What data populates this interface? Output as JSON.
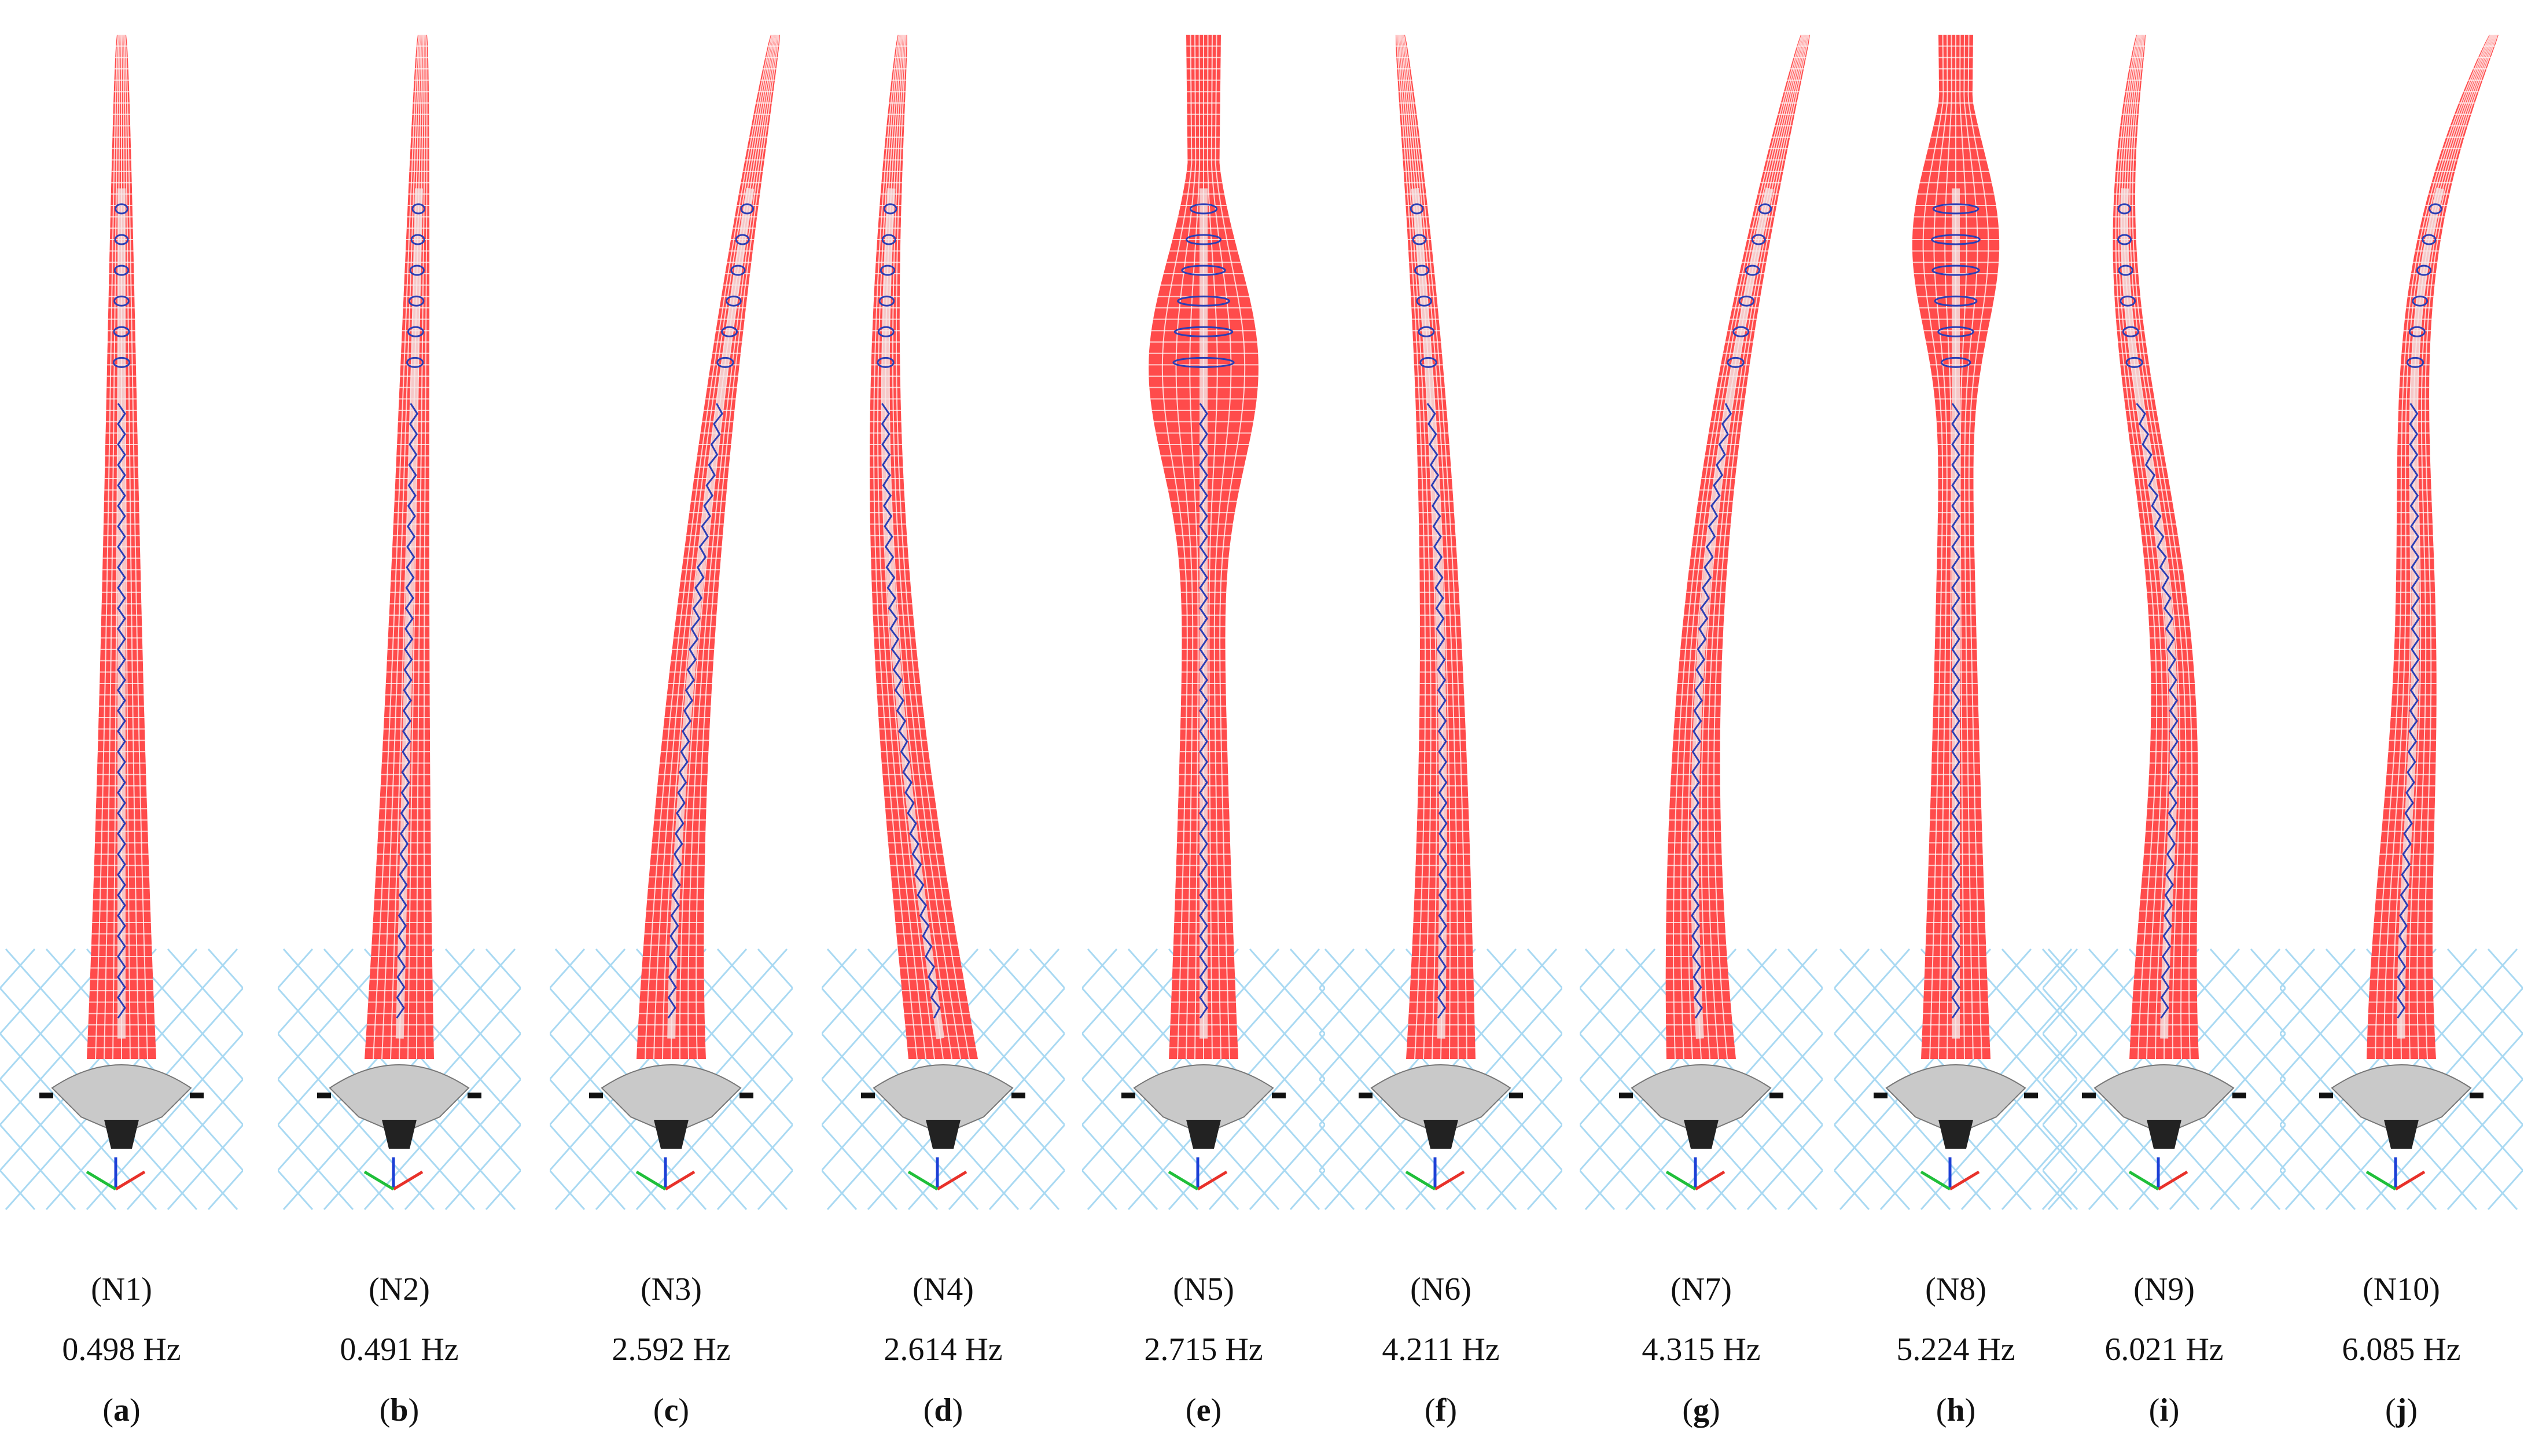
{
  "colors": {
    "mesh_fill": "#ff4b4b",
    "mesh_line": "#ffffff",
    "bracing": "#2b3fb5",
    "base_grey": "#c9c9c9",
    "ground_grid": "#a9d9f2",
    "axis_x": "#e8312a",
    "axis_y": "#1fbf3a",
    "axis_z": "#1c3fd6"
  },
  "panels": [
    {
      "mode": "(N1)",
      "frequency": "0.498 Hz",
      "letter": "a",
      "shape": "first-order bending, tip leaning right"
    },
    {
      "mode": "(N2)",
      "frequency": "0.491 Hz",
      "letter": "b",
      "shape": "first-order bending, tip leaning right"
    },
    {
      "mode": "(N3)",
      "frequency": "2.592 Hz",
      "letter": "c",
      "shape": "bending, strong curve to right"
    },
    {
      "mode": "(N4)",
      "frequency": "2.614 Hz",
      "letter": "d",
      "shape": "bending, bulge to right, tip left"
    },
    {
      "mode": "(N5)",
      "frequency": "2.715 Hz",
      "letter": "e",
      "shape": "torsion, widened mid section"
    },
    {
      "mode": "(N6)",
      "frequency": "4.211 Hz",
      "letter": "f",
      "shape": "second-order bending"
    },
    {
      "mode": "(N7)",
      "frequency": "4.315 Hz",
      "letter": "g",
      "shape": "second-order bending, S curve"
    },
    {
      "mode": "(N8)",
      "frequency": "5.224 Hz",
      "letter": "h",
      "shape": "torsion, bulged upper section"
    },
    {
      "mode": "(N9)",
      "frequency": "6.021 Hz",
      "letter": "i",
      "shape": "third-order bending"
    },
    {
      "mode": "(N10)",
      "frequency": "6.085 Hz",
      "letter": "j",
      "shape": "third-order bending, S curve"
    }
  ]
}
